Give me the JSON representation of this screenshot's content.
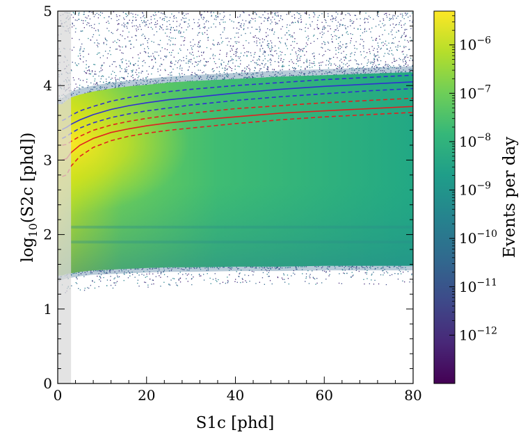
{
  "chart_data": {
    "type": "heatmap",
    "xlabel": "S1c [phd]",
    "ylabel": "log10(S2c [phd])",
    "xlim": [
      0,
      80
    ],
    "ylim": [
      0,
      5
    ],
    "x_ticks": [
      "0",
      "20",
      "40",
      "60",
      "80"
    ],
    "y_ticks": [
      "0",
      "1",
      "2",
      "3",
      "4",
      "5"
    ],
    "excluded_band_x": [
      0,
      3
    ],
    "colorbar": {
      "label": "Events per day",
      "scale": "log",
      "colormap": "viridis",
      "range": [
        1e-13,
        5e-06
      ],
      "ticks": [
        {
          "value": 1e-06,
          "mantissa": "10",
          "exponent": "−6"
        },
        {
          "value": 1e-07,
          "mantissa": "10",
          "exponent": "−7"
        },
        {
          "value": 1e-08,
          "mantissa": "10",
          "exponent": "−8"
        },
        {
          "value": 1e-09,
          "mantissa": "10",
          "exponent": "−9"
        },
        {
          "value": 1e-10,
          "mantissa": "10",
          "exponent": "−10"
        },
        {
          "value": 1e-11,
          "mantissa": "10",
          "exponent": "−11"
        },
        {
          "value": 1e-12,
          "mantissa": "10",
          "exponent": "−12"
        }
      ]
    },
    "band_edges": {
      "x": [
        1,
        2,
        3,
        5,
        8,
        12,
        16,
        20,
        25,
        30,
        40,
        50,
        60,
        70,
        80
      ],
      "upper_edge": [
        3.75,
        3.8,
        3.84,
        3.88,
        3.92,
        3.96,
        3.99,
        4.01,
        4.04,
        4.06,
        4.09,
        4.12,
        4.14,
        4.16,
        4.18
      ],
      "lower_edge": [
        1.45,
        1.47,
        1.48,
        1.5,
        1.52,
        1.53,
        1.54,
        1.55,
        1.56,
        1.56,
        1.57,
        1.57,
        1.58,
        1.58,
        1.58
      ],
      "faint_line_y": [
        1.9,
        2.1
      ]
    },
    "series": [
      {
        "color": "#3030d0",
        "style": "dashed",
        "x": [
          1,
          2,
          3,
          5,
          8,
          12,
          16,
          20,
          25,
          30,
          40,
          50,
          60,
          70,
          80
        ],
        "y": [
          3.53,
          3.56,
          3.6,
          3.66,
          3.72,
          3.79,
          3.84,
          3.88,
          3.92,
          3.95,
          4.0,
          4.04,
          4.08,
          4.11,
          4.14
        ]
      },
      {
        "color": "#3030d0",
        "style": "solid",
        "x": [
          1,
          2,
          3,
          5,
          8,
          12,
          16,
          20,
          25,
          30,
          40,
          50,
          60,
          70,
          80
        ],
        "y": [
          3.41,
          3.44,
          3.48,
          3.54,
          3.61,
          3.68,
          3.73,
          3.77,
          3.81,
          3.84,
          3.9,
          3.95,
          3.99,
          4.02,
          4.05
        ]
      },
      {
        "color": "#3030d0",
        "style": "dashed",
        "x": [
          1,
          2,
          3,
          5,
          8,
          12,
          16,
          20,
          25,
          30,
          40,
          50,
          60,
          70,
          80
        ],
        "y": [
          3.29,
          3.32,
          3.36,
          3.43,
          3.5,
          3.57,
          3.62,
          3.66,
          3.7,
          3.74,
          3.8,
          3.85,
          3.89,
          3.93,
          3.96
        ]
      },
      {
        "color": "#e02020",
        "style": "dashed",
        "x": [
          1,
          2,
          3,
          5,
          8,
          12,
          16,
          20,
          25,
          30,
          40,
          50,
          60,
          70,
          80
        ],
        "y": [
          3.2,
          3.21,
          3.25,
          3.32,
          3.4,
          3.47,
          3.52,
          3.56,
          3.6,
          3.63,
          3.69,
          3.73,
          3.77,
          3.8,
          3.83
        ]
      },
      {
        "color": "#e02020",
        "style": "solid",
        "x": [
          1,
          2,
          3,
          5,
          8,
          12,
          16,
          20,
          25,
          30,
          40,
          50,
          60,
          70,
          80
        ],
        "y": [
          3.0,
          3.02,
          3.1,
          3.2,
          3.29,
          3.37,
          3.42,
          3.46,
          3.5,
          3.53,
          3.58,
          3.63,
          3.66,
          3.69,
          3.72
        ]
      },
      {
        "color": "#e02020",
        "style": "dashed",
        "x": [
          1,
          2,
          3,
          5,
          8,
          12,
          16,
          20,
          25,
          30,
          40,
          50,
          60,
          70,
          80
        ],
        "y": [
          2.78,
          2.8,
          2.92,
          3.05,
          3.17,
          3.26,
          3.32,
          3.36,
          3.4,
          3.43,
          3.49,
          3.54,
          3.58,
          3.61,
          3.64
        ]
      }
    ]
  }
}
